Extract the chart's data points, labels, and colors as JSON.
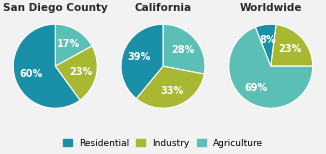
{
  "charts": [
    {
      "title": "San Diego County",
      "values": [
        17,
        23,
        60
      ],
      "colors": [
        "#5bbfb5",
        "#a8b832",
        "#1a8fa8"
      ],
      "labels": [
        "17%",
        "23%",
        "60%"
      ],
      "startangle": 90,
      "counterclock": false
    },
    {
      "title": "California",
      "values": [
        28,
        33,
        39
      ],
      "colors": [
        "#5bbfb5",
        "#a8b832",
        "#1a8fa8"
      ],
      "labels": [
        "28%",
        "33%",
        "39%"
      ],
      "startangle": 90,
      "counterclock": false
    },
    {
      "title": "Worldwide",
      "values": [
        23,
        8,
        69
      ],
      "colors": [
        "#a8b832",
        "#1a8fa8",
        "#5bbfb5"
      ],
      "labels": [
        "23%",
        "8%",
        "69%"
      ],
      "startangle": 0,
      "counterclock": true
    }
  ],
  "legend_labels": [
    "Residential",
    "Industry",
    "Agriculture"
  ],
  "legend_colors": [
    "#1a8fa8",
    "#a8b832",
    "#5bbfb5"
  ],
  "bg_color": "#f2f2f2",
  "text_color": "#2a2a2a",
  "title_fontsize": 7.5,
  "label_fontsize": 7,
  "legend_fontsize": 6.5
}
